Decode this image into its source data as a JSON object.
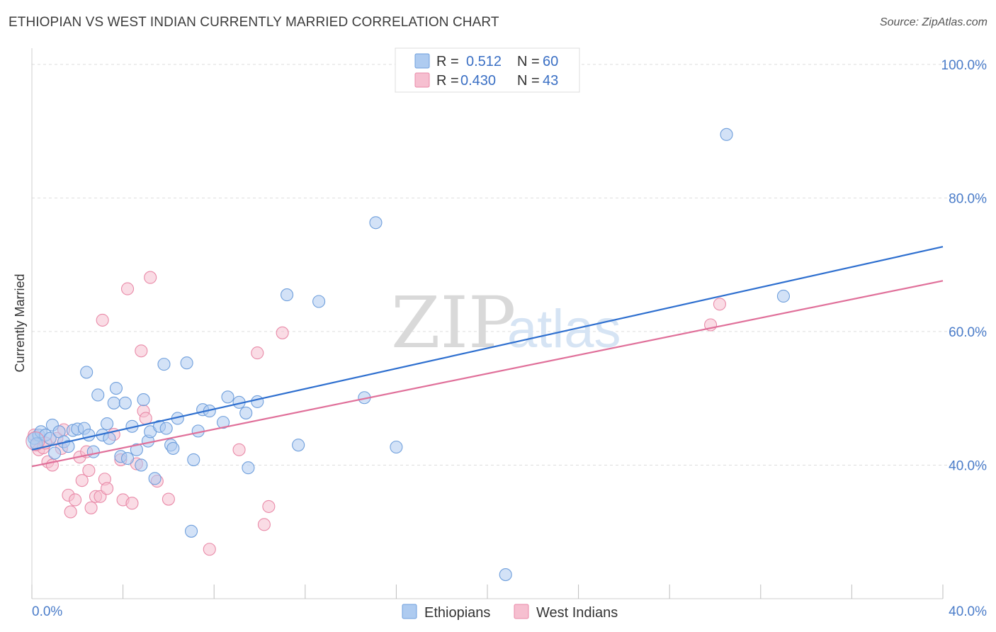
{
  "title": "ETHIOPIAN VS WEST INDIAN CURRENTLY MARRIED CORRELATION CHART",
  "source": "Source: ZipAtlas.com",
  "watermark": {
    "zip": "ZIP",
    "atlas": "atlas"
  },
  "colors": {
    "blue_fill": "#aecbf0",
    "blue_stroke": "#6f9fdc",
    "blue_line": "#2e6fcf",
    "pink_fill": "#f6bfd0",
    "pink_stroke": "#e98aa8",
    "pink_line": "#e0709a",
    "grid": "#dddddd",
    "axis_label": "#4a7cc9"
  },
  "legend": {
    "entries": [
      {
        "r_label": "R = ",
        "r_value": "0.512",
        "n_label": "N = ",
        "n_value": "60"
      },
      {
        "r_label": "R = ",
        "r_value": "0.430",
        "n_label": "N = ",
        "n_value": "43"
      }
    ]
  },
  "chart_data": {
    "type": "scatter",
    "title": "ETHIOPIAN VS WEST INDIAN CURRENTLY MARRIED CORRELATION CHART",
    "xlabel": "",
    "ylabel": "Currently Married",
    "xlim": [
      0,
      40
    ],
    "ylim": [
      20,
      102
    ],
    "x_tick_labels": [
      {
        "value": 0,
        "label": "0.0%"
      },
      {
        "value": 40,
        "label": "40.0%"
      }
    ],
    "y_tick_labels": [
      {
        "value": 40,
        "label": "40.0%"
      },
      {
        "value": 60,
        "label": "60.0%"
      },
      {
        "value": 80,
        "label": "80.0%"
      },
      {
        "value": 100,
        "label": "100.0%"
      }
    ],
    "grid": true,
    "legend_position": "top-center",
    "series": [
      {
        "name": "Ethiopians",
        "color": "blue",
        "trend": {
          "x": [
            0,
            40
          ],
          "y": [
            42.3,
            72.7
          ]
        },
        "points": [
          [
            0.1,
            44.0
          ],
          [
            0.3,
            44.5
          ],
          [
            0.4,
            45.0
          ],
          [
            0.6,
            44.5
          ],
          [
            0.8,
            44.0
          ],
          [
            0.9,
            46.0
          ],
          [
            1.0,
            41.8
          ],
          [
            1.2,
            45.0
          ],
          [
            1.4,
            43.5
          ],
          [
            1.6,
            42.8
          ],
          [
            1.8,
            45.2
          ],
          [
            2.0,
            45.4
          ],
          [
            2.3,
            45.5
          ],
          [
            2.4,
            53.9
          ],
          [
            2.5,
            44.5
          ],
          [
            2.7,
            42.0
          ],
          [
            2.9,
            50.5
          ],
          [
            3.1,
            44.5
          ],
          [
            3.3,
            46.2
          ],
          [
            3.4,
            44.0
          ],
          [
            3.6,
            49.3
          ],
          [
            3.7,
            51.5
          ],
          [
            3.9,
            41.3
          ],
          [
            4.1,
            49.3
          ],
          [
            4.2,
            41.0
          ],
          [
            4.4,
            45.8
          ],
          [
            4.6,
            42.3
          ],
          [
            4.8,
            40.0
          ],
          [
            4.9,
            49.8
          ],
          [
            5.1,
            43.6
          ],
          [
            5.2,
            45.0
          ],
          [
            5.4,
            38.0
          ],
          [
            5.6,
            45.8
          ],
          [
            5.8,
            55.1
          ],
          [
            5.9,
            45.5
          ],
          [
            6.1,
            43.0
          ],
          [
            6.2,
            42.5
          ],
          [
            6.4,
            47.0
          ],
          [
            6.8,
            55.3
          ],
          [
            7.0,
            30.1
          ],
          [
            7.1,
            40.8
          ],
          [
            7.3,
            45.1
          ],
          [
            7.5,
            48.3
          ],
          [
            7.8,
            48.1
          ],
          [
            8.4,
            46.4
          ],
          [
            8.6,
            50.2
          ],
          [
            9.1,
            49.4
          ],
          [
            9.4,
            47.8
          ],
          [
            9.5,
            39.6
          ],
          [
            9.9,
            49.5
          ],
          [
            11.2,
            65.5
          ],
          [
            11.7,
            43.0
          ],
          [
            12.6,
            64.5
          ],
          [
            14.6,
            50.1
          ],
          [
            15.1,
            76.3
          ],
          [
            16.0,
            42.7
          ],
          [
            20.8,
            23.6
          ],
          [
            30.5,
            89.5
          ],
          [
            33.0,
            65.3
          ],
          [
            0.2,
            43.2
          ]
        ]
      },
      {
        "name": "West Indians",
        "color": "pink",
        "trend": {
          "x": [
            0,
            40
          ],
          "y": [
            39.8,
            67.6
          ]
        },
        "points": [
          [
            0.1,
            44.5
          ],
          [
            0.2,
            43.0
          ],
          [
            0.3,
            42.3
          ],
          [
            0.5,
            42.6
          ],
          [
            0.7,
            40.5
          ],
          [
            0.9,
            40.0
          ],
          [
            1.1,
            44.0
          ],
          [
            1.3,
            42.5
          ],
          [
            1.4,
            45.3
          ],
          [
            1.6,
            35.5
          ],
          [
            1.7,
            33.0
          ],
          [
            1.9,
            34.8
          ],
          [
            2.1,
            41.2
          ],
          [
            2.2,
            37.7
          ],
          [
            2.4,
            42.0
          ],
          [
            2.5,
            39.2
          ],
          [
            2.6,
            33.6
          ],
          [
            2.8,
            35.3
          ],
          [
            3.0,
            35.3
          ],
          [
            3.1,
            61.7
          ],
          [
            3.2,
            37.9
          ],
          [
            3.3,
            36.5
          ],
          [
            3.6,
            44.6
          ],
          [
            3.9,
            40.8
          ],
          [
            4.0,
            34.8
          ],
          [
            4.2,
            66.4
          ],
          [
            4.4,
            34.3
          ],
          [
            4.6,
            40.2
          ],
          [
            4.8,
            57.1
          ],
          [
            4.9,
            48.1
          ],
          [
            5.0,
            47.0
          ],
          [
            5.2,
            68.1
          ],
          [
            5.5,
            37.6
          ],
          [
            6.0,
            34.9
          ],
          [
            7.8,
            27.4
          ],
          [
            9.1,
            42.3
          ],
          [
            9.9,
            56.8
          ],
          [
            10.2,
            31.1
          ],
          [
            10.4,
            33.8
          ],
          [
            11.0,
            59.8
          ],
          [
            29.8,
            61.0
          ],
          [
            30.2,
            64.1
          ],
          [
            0.6,
            43.3
          ]
        ]
      }
    ]
  }
}
